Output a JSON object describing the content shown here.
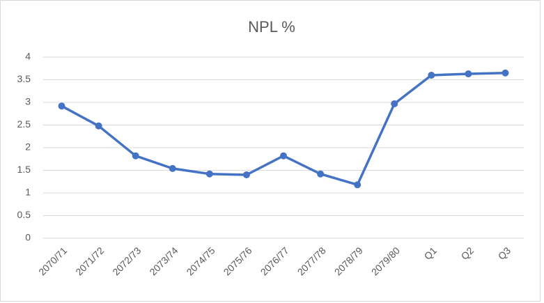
{
  "chart_data": {
    "type": "line",
    "title": "NPL %",
    "categories": [
      "2070/71",
      "2071/72",
      "2072/73",
      "2073/74",
      "2074/75",
      "2075/76",
      "2076/77",
      "2077/78",
      "2078/79",
      "2079/80",
      "Q1",
      "Q2",
      "Q3"
    ],
    "series": [
      {
        "name": "NPL %",
        "color": "#4472c4",
        "values": [
          2.92,
          2.48,
          1.82,
          1.54,
          1.42,
          1.4,
          1.82,
          1.42,
          1.18,
          2.97,
          3.6,
          3.63,
          3.65
        ]
      }
    ],
    "ylim": [
      0,
      4
    ],
    "yticks": [
      0,
      0.5,
      1,
      1.5,
      2,
      2.5,
      3,
      3.5,
      4
    ],
    "grid": true
  }
}
